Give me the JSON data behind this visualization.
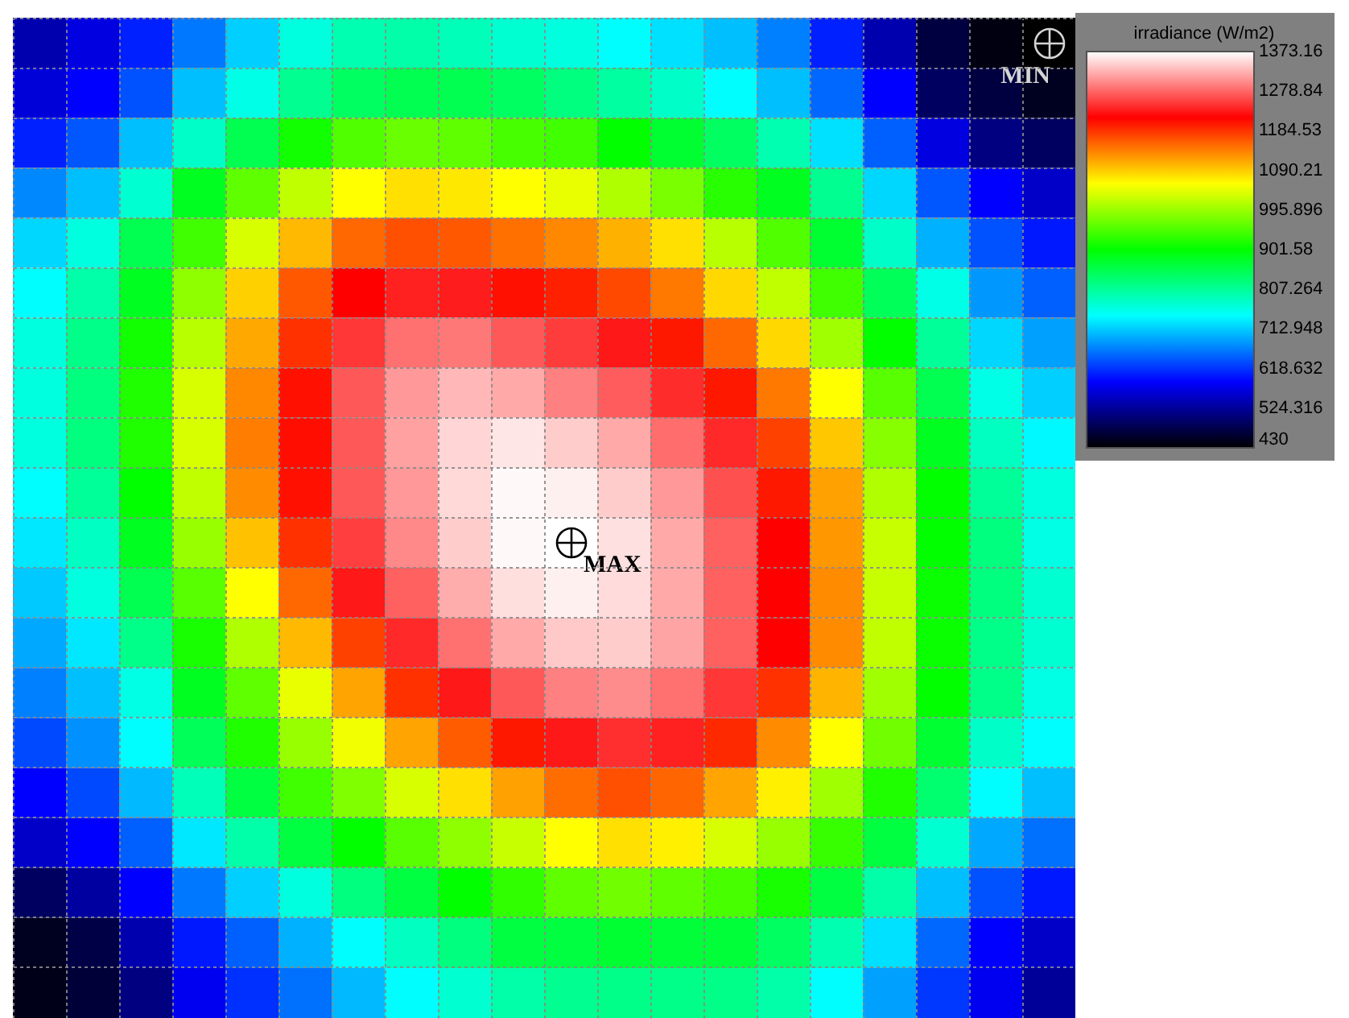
{
  "chart_data": {
    "type": "heatmap",
    "categories": [
      null,
      null,
      null,
      null,
      null,
      null,
      null,
      null,
      null,
      null,
      null,
      null,
      null,
      null,
      null,
      null,
      null,
      null,
      null,
      null
    ],
    "y_categories": [
      null,
      null,
      null,
      null,
      null,
      null,
      null,
      null,
      null,
      null,
      null,
      null,
      null,
      null,
      null,
      null,
      null,
      null,
      null,
      null
    ],
    "cells": [
      [
        538,
        568,
        607,
        661,
        715,
        764,
        793,
        798,
        788,
        773,
        764,
        744,
        725,
        705,
        666,
        607,
        538,
        470,
        440,
        430
      ],
      [
        563,
        587,
        637,
        705,
        759,
        813,
        842,
        852,
        852,
        842,
        823,
        803,
        778,
        744,
        705,
        651,
        587,
        489,
        470,
        450
      ],
      [
        607,
        641,
        705,
        778,
        852,
        912,
        951,
        966,
        961,
        946,
        941,
        902,
        872,
        842,
        793,
        725,
        646,
        568,
        509,
        489
      ],
      [
        671,
        705,
        773,
        882,
        961,
        1020,
        1059,
        1078,
        1073,
        1059,
        1045,
        1010,
        976,
        926,
        882,
        813,
        720,
        641,
        587,
        553
      ],
      [
        720,
        764,
        852,
        941,
        1035,
        1102,
        1152,
        1167,
        1162,
        1147,
        1132,
        1107,
        1078,
        1015,
        951,
        872,
        778,
        696,
        637,
        602
      ],
      [
        744,
        798,
        882,
        990,
        1088,
        1162,
        1216,
        1236,
        1233,
        1206,
        1196,
        1171,
        1142,
        1083,
        1020,
        941,
        847,
        759,
        681,
        646
      ],
      [
        764,
        818,
        912,
        1015,
        1112,
        1186,
        1250,
        1285,
        1290,
        1270,
        1253,
        1231,
        1201,
        1152,
        1083,
        1000,
        902,
        808,
        720,
        686
      ],
      [
        764,
        823,
        921,
        1035,
        1132,
        1206,
        1270,
        1310,
        1329,
        1320,
        1295,
        1273,
        1243,
        1201,
        1142,
        1059,
        956,
        852,
        759,
        715
      ],
      [
        764,
        823,
        921,
        1035,
        1139,
        1208,
        1270,
        1315,
        1347,
        1358,
        1342,
        1320,
        1283,
        1241,
        1176,
        1093,
        985,
        882,
        783,
        740
      ],
      [
        744,
        808,
        902,
        1020,
        1130,
        1206,
        1270,
        1310,
        1349,
        1369,
        1364,
        1342,
        1310,
        1265,
        1201,
        1117,
        1010,
        902,
        808,
        764
      ],
      [
        730,
        782,
        882,
        995,
        1097,
        1186,
        1255,
        1300,
        1342,
        1369,
        1373.16,
        1354,
        1320,
        1275,
        1216,
        1122,
        1025,
        902,
        823,
        761
      ],
      [
        711,
        764,
        852,
        956,
        1059,
        1152,
        1231,
        1275,
        1322,
        1353,
        1364,
        1351,
        1320,
        1275,
        1216,
        1130,
        1025,
        908,
        823,
        773
      ],
      [
        691,
        730,
        818,
        916,
        1010,
        1102,
        1176,
        1241,
        1285,
        1320,
        1340,
        1342,
        1317,
        1275,
        1216,
        1130,
        1020,
        908,
        818,
        773
      ],
      [
        666,
        705,
        761,
        882,
        961,
        1045,
        1115,
        1186,
        1231,
        1270,
        1295,
        1302,
        1285,
        1250,
        1186,
        1105,
        1000,
        902,
        818,
        761
      ],
      [
        632,
        676,
        744,
        847,
        921,
        995,
        1050,
        1115,
        1159,
        1201,
        1231,
        1245,
        1236,
        1191,
        1130,
        1059,
        971,
        871,
        778,
        744
      ],
      [
        587,
        632,
        701,
        788,
        862,
        941,
        980,
        1035,
        1078,
        1117,
        1149,
        1167,
        1154,
        1115,
        1068,
        1000,
        921,
        833,
        744,
        705
      ],
      [
        553,
        587,
        646,
        730,
        798,
        862,
        902,
        956,
        990,
        1025,
        1059,
        1078,
        1068,
        1035,
        995,
        936,
        862,
        773,
        691,
        656
      ],
      [
        489,
        529,
        587,
        661,
        715,
        764,
        823,
        862,
        902,
        931,
        961,
        971,
        961,
        946,
        916,
        862,
        798,
        705,
        637,
        602
      ],
      [
        450,
        474,
        538,
        602,
        646,
        696,
        744,
        783,
        823,
        862,
        862,
        871,
        867,
        867,
        842,
        793,
        725,
        651,
        587,
        553
      ],
      [
        445,
        465,
        509,
        578,
        617,
        656,
        701,
        744,
        773,
        798,
        813,
        818,
        818,
        818,
        798,
        744,
        686,
        622,
        578,
        524
      ]
    ],
    "clabel": "irradiance (W/m2)",
    "clim": [
      430,
      1373.16
    ],
    "cticks": [
      430,
      524.316,
      618.632,
      712.948,
      807.264,
      901.58,
      995.896,
      1090.21,
      1184.53,
      1278.84,
      1373.16
    ],
    "grid": true,
    "annotations": [
      "MIN",
      "MAX"
    ]
  }
}
